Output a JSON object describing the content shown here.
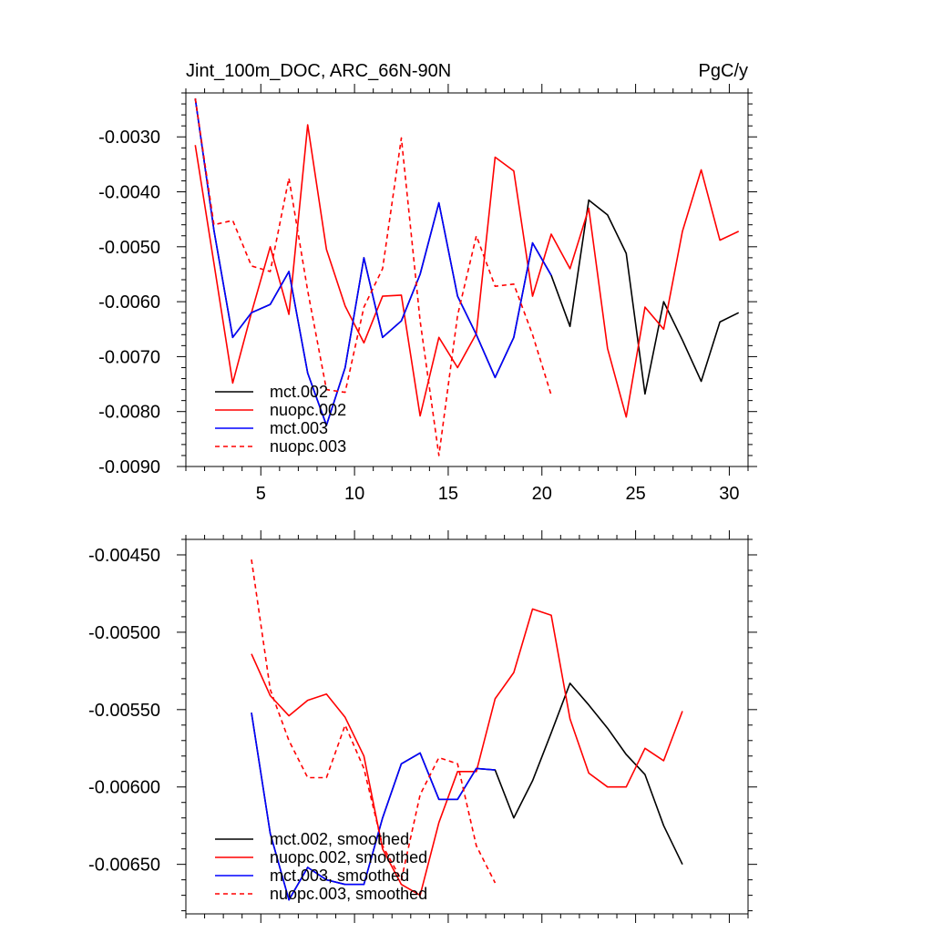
{
  "chart_data": [
    {
      "type": "line",
      "title": "Jint_100m_DOC, ARC_66N-90N",
      "units": "PgC/y",
      "xlim": [
        1,
        31
      ],
      "ylim": [
        -0.009,
        -0.0022
      ],
      "yticks": [
        -0.009,
        -0.008,
        -0.007,
        -0.006,
        -0.005,
        -0.004,
        -0.003
      ],
      "ytick_labels": [
        "-0.0090",
        "-0.0080",
        "-0.0070",
        "-0.0060",
        "-0.0050",
        "-0.0040",
        "-0.0030"
      ],
      "xticks": [
        5,
        10,
        15,
        20,
        25,
        30
      ],
      "xtick_labels": [
        "5",
        "10",
        "15",
        "20",
        "25",
        "30"
      ],
      "legend_position": "bottom-left",
      "series": [
        {
          "name": "mct.002",
          "color": "#000000",
          "dash": "solid",
          "x": [
            1.5,
            2.5,
            3.5,
            4.5,
            5.5,
            6.5,
            7.5,
            8.5,
            9.5,
            10.5,
            11.5,
            12.5,
            13.5,
            14.5,
            15.5,
            16.5,
            17.5,
            18.5,
            19.5,
            20.5,
            21.5,
            22.5,
            23.5,
            24.5,
            25.5,
            26.5,
            27.5,
            28.5,
            29.5,
            30.5
          ],
          "values": [
            -0.0023,
            -0.0047,
            -0.00665,
            -0.0062,
            -0.00605,
            -0.00545,
            -0.0073,
            -0.00825,
            -0.0072,
            -0.0052,
            -0.00665,
            -0.00635,
            -0.0055,
            -0.0042,
            -0.0059,
            -0.0066,
            -0.00738,
            -0.00665,
            -0.00493,
            -0.00552,
            -0.00645,
            -0.00415,
            -0.00442,
            -0.00512,
            -0.00768,
            -0.006,
            -0.0067,
            -0.00745,
            -0.00637,
            -0.0062
          ]
        },
        {
          "name": "nuopc.002",
          "color": "#ff0000",
          "dash": "solid",
          "x": [
            1.5,
            2.5,
            3.5,
            4.5,
            5.5,
            6.5,
            7.5,
            8.5,
            9.5,
            10.5,
            11.5,
            12.5,
            13.5,
            14.5,
            15.5,
            16.5,
            17.5,
            18.5,
            19.5,
            20.5,
            21.5,
            22.5,
            23.5,
            24.5,
            25.5,
            26.5,
            27.5,
            28.5,
            29.5,
            30.5
          ],
          "values": [
            -0.00315,
            -0.0053,
            -0.00748,
            -0.0062,
            -0.005,
            -0.00623,
            -0.00278,
            -0.00505,
            -0.00608,
            -0.00675,
            -0.0059,
            -0.00588,
            -0.00808,
            -0.00665,
            -0.0072,
            -0.00658,
            -0.00337,
            -0.00362,
            -0.0059,
            -0.00477,
            -0.0054,
            -0.0043,
            -0.00685,
            -0.0081,
            -0.0061,
            -0.0065,
            -0.00472,
            -0.0036,
            -0.00488,
            -0.00472
          ]
        },
        {
          "name": "mct.003",
          "color": "#0000ff",
          "dash": "solid",
          "x": [
            1.5,
            2.5,
            3.5,
            4.5,
            5.5,
            6.5,
            7.5,
            8.5,
            9.5,
            10.5,
            11.5,
            12.5,
            13.5,
            14.5,
            15.5,
            16.5,
            17.5,
            18.5,
            19.5,
            20.5
          ],
          "values": [
            -0.0023,
            -0.0047,
            -0.00665,
            -0.0062,
            -0.00605,
            -0.00545,
            -0.0073,
            -0.00825,
            -0.0072,
            -0.0052,
            -0.00665,
            -0.00635,
            -0.0055,
            -0.0042,
            -0.0059,
            -0.0066,
            -0.00738,
            -0.00665,
            -0.00493,
            -0.00552
          ]
        },
        {
          "name": "nuopc.003",
          "color": "#ff0000",
          "dash": "dashed",
          "x": [
            1.5,
            2.5,
            3.5,
            4.5,
            5.5,
            6.5,
            7.5,
            8.5,
            9.5,
            10.5,
            11.5,
            12.5,
            13.5,
            14.5,
            15.5,
            16.5,
            17.5,
            18.5,
            19.5,
            20.5
          ],
          "values": [
            -0.0023,
            -0.0046,
            -0.00452,
            -0.00535,
            -0.00545,
            -0.00375,
            -0.0058,
            -0.0076,
            -0.00765,
            -0.0061,
            -0.0054,
            -0.00302,
            -0.00635,
            -0.0088,
            -0.00625,
            -0.0048,
            -0.00572,
            -0.00568,
            -0.0066,
            -0.0077
          ]
        }
      ]
    },
    {
      "type": "line",
      "title": "",
      "xlim": [
        1,
        31
      ],
      "ylim": [
        -0.00682,
        -0.0044
      ],
      "yticks": [
        -0.0065,
        -0.006,
        -0.0055,
        -0.005,
        -0.0045
      ],
      "ytick_labels": [
        "-0.00650",
        "-0.00600",
        "-0.00550",
        "-0.00500",
        "-0.00450"
      ],
      "xticks": [
        5,
        10,
        15,
        20,
        25,
        30
      ],
      "xtick_labels": [],
      "legend_position": "bottom-left",
      "series": [
        {
          "name": "mct.002, smoothed",
          "color": "#000000",
          "dash": "solid",
          "x": [
            4.5,
            5.5,
            6.5,
            7.5,
            8.5,
            9.5,
            10.5,
            11.5,
            12.5,
            13.5,
            14.5,
            15.5,
            16.5,
            17.5,
            18.5,
            19.5,
            20.5,
            21.5,
            22.5,
            23.5,
            24.5,
            25.5,
            26.5,
            27.5
          ],
          "values": [
            -0.00552,
            -0.0063,
            -0.00673,
            -0.00652,
            -0.0066,
            -0.00663,
            -0.00663,
            -0.0062,
            -0.00585,
            -0.00578,
            -0.00608,
            -0.00608,
            -0.00588,
            -0.00589,
            -0.0062,
            -0.00596,
            -0.00565,
            -0.00533,
            -0.00547,
            -0.00562,
            -0.00579,
            -0.00592,
            -0.00625,
            -0.0065
          ]
        },
        {
          "name": "nuopc.002, smoothed",
          "color": "#ff0000",
          "dash": "solid",
          "x": [
            4.5,
            5.5,
            6.5,
            7.5,
            8.5,
            9.5,
            10.5,
            11.5,
            12.5,
            13.5,
            14.5,
            15.5,
            16.5,
            17.5,
            18.5,
            19.5,
            20.5,
            21.5,
            22.5,
            23.5,
            24.5,
            25.5,
            26.5,
            27.5
          ],
          "values": [
            -0.00514,
            -0.00541,
            -0.00554,
            -0.00544,
            -0.0054,
            -0.00555,
            -0.0058,
            -0.0064,
            -0.00663,
            -0.0067,
            -0.00623,
            -0.0059,
            -0.0059,
            -0.00543,
            -0.00526,
            -0.00485,
            -0.00489,
            -0.00556,
            -0.00591,
            -0.006,
            -0.006,
            -0.00575,
            -0.00583,
            -0.00551
          ]
        },
        {
          "name": "mct.003, smoothed",
          "color": "#0000ff",
          "dash": "solid",
          "x": [
            4.5,
            5.5,
            6.5,
            7.5,
            8.5,
            9.5,
            10.5,
            11.5,
            12.5,
            13.5,
            14.5,
            15.5,
            16.5,
            17.5
          ],
          "values": [
            -0.00552,
            -0.0063,
            -0.00673,
            -0.00652,
            -0.0066,
            -0.00663,
            -0.00663,
            -0.0062,
            -0.00585,
            -0.00578,
            -0.00608,
            -0.00608,
            -0.00588,
            -0.00589
          ]
        },
        {
          "name": "nuopc.003, smoothed",
          "color": "#ff0000",
          "dash": "dashed",
          "x": [
            4.5,
            5.5,
            6.5,
            7.5,
            8.5,
            9.5,
            10.5,
            11.5,
            12.5,
            13.5,
            14.5,
            15.5,
            16.5,
            17.5
          ],
          "values": [
            -0.00453,
            -0.00537,
            -0.0057,
            -0.00594,
            -0.00594,
            -0.0056,
            -0.00588,
            -0.00638,
            -0.0066,
            -0.00605,
            -0.00581,
            -0.00585,
            -0.00638,
            -0.00662
          ]
        }
      ]
    }
  ]
}
